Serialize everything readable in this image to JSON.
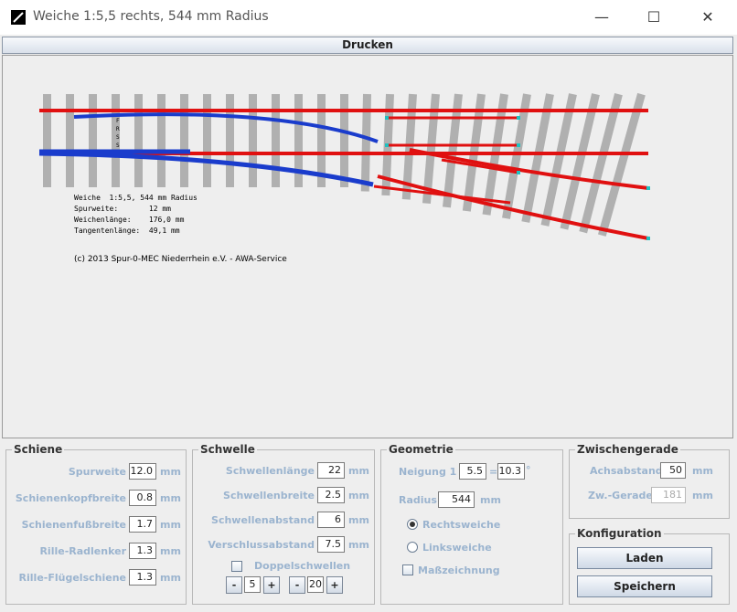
{
  "window": {
    "title": "Weiche 1:5,5 rechts, 544 mm Radius",
    "minimize": "—",
    "maximize": "☐",
    "close": "✕"
  },
  "toolbar": {
    "print_label": "Drucken"
  },
  "drawing": {
    "info_lines": [
      "Weiche  1:5,5, 544 mm Radius",
      "Spurweite:       12 mm",
      "Weichenlänge:    176,0 mm",
      "Tangentenlänge:  49,1 mm"
    ],
    "copyright": "(c) 2013 Spur-0-MEC Niederrhein e.V. -  AWA-Service",
    "rail_color": "#e01010",
    "rail_highlight": "#1a3ccc",
    "sleeper_color": "#b0b0b0"
  },
  "schiene": {
    "title": "Schiene",
    "fields": [
      {
        "label": "Spurweite",
        "value": "12.0",
        "unit": "mm"
      },
      {
        "label": "Schienenkopfbreite",
        "value": "0.8",
        "unit": "mm"
      },
      {
        "label": "Schienenfußbreite",
        "value": "1.7",
        "unit": "mm"
      },
      {
        "label": "Rille-Radlenker",
        "value": "1.3",
        "unit": "mm"
      },
      {
        "label": "Rille-Flügelschiene",
        "value": "1.3",
        "unit": "mm"
      }
    ]
  },
  "schwelle": {
    "title": "Schwelle",
    "fields": [
      {
        "label": "Schwellenlänge",
        "value": "22",
        "unit": "mm"
      },
      {
        "label": "Schwellenbreite",
        "value": "2.5",
        "unit": "mm"
      },
      {
        "label": "Schwellenabstand",
        "value": "6",
        "unit": "mm"
      },
      {
        "label": "Verschlussabstand",
        "value": "7.5",
        "unit": "mm"
      }
    ],
    "doppel_label": "Doppelschwellen",
    "stepper1": "5",
    "stepper2": "20",
    "minus": "-",
    "plus": "+"
  },
  "geometrie": {
    "title": "Geometrie",
    "neigung_label": "Neigung  1 :",
    "neigung_value": "5.5",
    "equals": "=",
    "angle_value": "10.3",
    "degree": "°",
    "radius_label": "Radius",
    "radius_value": "544",
    "radius_unit": "mm",
    "rechts_label": "Rechtsweiche",
    "links_label": "Linksweiche",
    "mass_label": "Maßzeichnung"
  },
  "zwischen": {
    "title": "Zwischengerade",
    "achs_label": "Achsabstand",
    "achs_value": "50",
    "achs_unit": "mm",
    "zw_label": "Zw.-Gerade",
    "zw_value": "181",
    "zw_unit": "mm"
  },
  "konfig": {
    "title": "Konfiguration",
    "laden": "Laden",
    "speichern": "Speichern"
  }
}
